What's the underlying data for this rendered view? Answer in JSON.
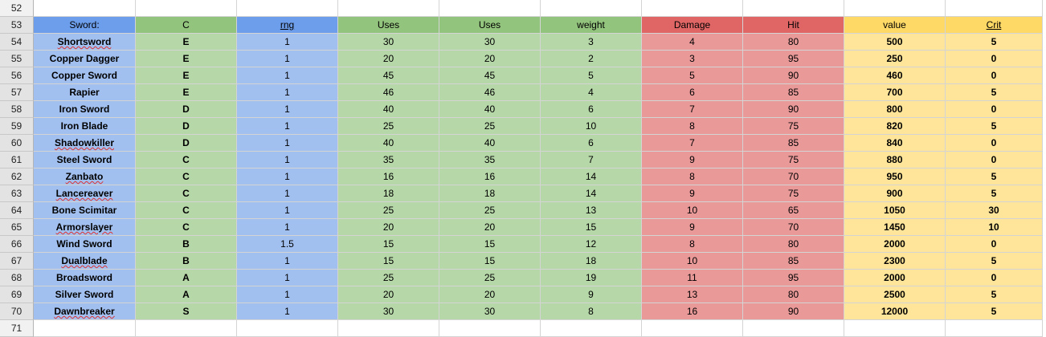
{
  "row_numbers": {
    "top": "52",
    "header": "53",
    "bottom": "71"
  },
  "headers": [
    "Sword:",
    "C",
    "rng",
    "Uses",
    "Uses",
    "weight",
    "Damage",
    "Hit",
    "value",
    "Crit"
  ],
  "rows": [
    {
      "n": "54",
      "c": [
        "Shortsword",
        "E",
        "1",
        "30",
        "30",
        "3",
        "4",
        "80",
        "500",
        "5"
      ],
      "sq": true
    },
    {
      "n": "55",
      "c": [
        "Copper Dagger",
        "E",
        "1",
        "20",
        "20",
        "2",
        "3",
        "95",
        "250",
        "0"
      ]
    },
    {
      "n": "56",
      "c": [
        "Copper Sword",
        "E",
        "1",
        "45",
        "45",
        "5",
        "5",
        "90",
        "460",
        "0"
      ]
    },
    {
      "n": "57",
      "c": [
        "Rapier",
        "E",
        "1",
        "46",
        "46",
        "4",
        "6",
        "85",
        "700",
        "5"
      ]
    },
    {
      "n": "58",
      "c": [
        "Iron Sword",
        "D",
        "1",
        "40",
        "40",
        "6",
        "7",
        "90",
        "800",
        "0"
      ]
    },
    {
      "n": "59",
      "c": [
        "Iron Blade",
        "D",
        "1",
        "25",
        "25",
        "10",
        "8",
        "75",
        "820",
        "5"
      ]
    },
    {
      "n": "60",
      "c": [
        "Shadowkiller",
        "D",
        "1",
        "40",
        "40",
        "6",
        "7",
        "85",
        "840",
        "0"
      ],
      "sq": true
    },
    {
      "n": "61",
      "c": [
        "Steel Sword",
        "C",
        "1",
        "35",
        "35",
        "7",
        "9",
        "75",
        "880",
        "0"
      ]
    },
    {
      "n": "62",
      "c": [
        "Zanbato",
        "C",
        "1",
        "16",
        "16",
        "14",
        "8",
        "70",
        "950",
        "5"
      ],
      "sq": true
    },
    {
      "n": "63",
      "c": [
        "Lancereaver",
        "C",
        "1",
        "18",
        "18",
        "14",
        "9",
        "75",
        "900",
        "5"
      ],
      "sq": true
    },
    {
      "n": "64",
      "c": [
        "Bone Scimitar",
        "C",
        "1",
        "25",
        "25",
        "13",
        "10",
        "65",
        "1050",
        "30"
      ]
    },
    {
      "n": "65",
      "c": [
        "Armorslayer",
        "C",
        "1",
        "20",
        "20",
        "15",
        "9",
        "70",
        "1450",
        "10"
      ],
      "sq": true
    },
    {
      "n": "66",
      "c": [
        "Wind Sword",
        "B",
        "1.5",
        "15",
        "15",
        "12",
        "8",
        "80",
        "2000",
        "0"
      ]
    },
    {
      "n": "67",
      "c": [
        "Dualblade",
        "B",
        "1",
        "15",
        "15",
        "18",
        "10",
        "85",
        "2300",
        "5"
      ],
      "sq": true
    },
    {
      "n": "68",
      "c": [
        "Broadsword",
        "A",
        "1",
        "25",
        "25",
        "19",
        "11",
        "95",
        "2000",
        "0"
      ]
    },
    {
      "n": "69",
      "c": [
        "Silver Sword",
        "A",
        "1",
        "20",
        "20",
        "9",
        "13",
        "80",
        "2500",
        "5"
      ]
    },
    {
      "n": "70",
      "c": [
        "Dawnbreaker",
        "S",
        "1",
        "30",
        "30",
        "8",
        "16",
        "90",
        "12000",
        "5"
      ],
      "sq": true
    }
  ]
}
